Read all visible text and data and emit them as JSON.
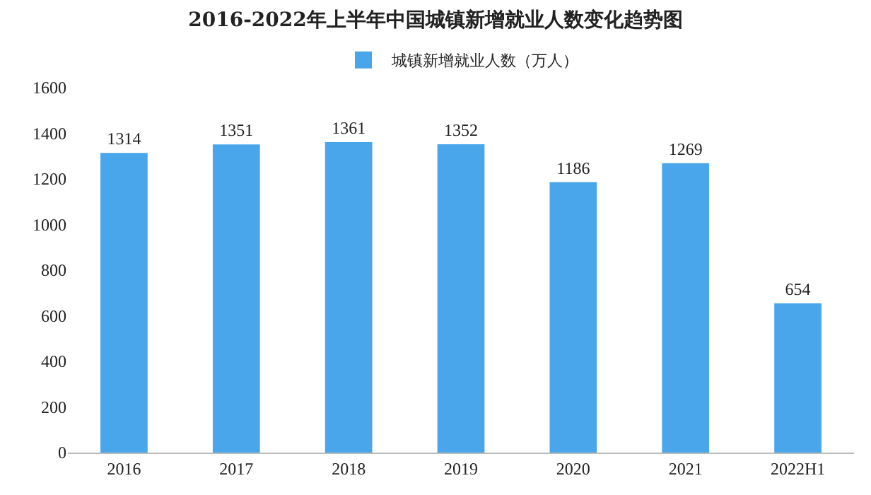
{
  "chart_data": {
    "type": "bar",
    "title": "2016-2022年上半年中国城镇新增就业人数变化趋势图",
    "categories": [
      "2016",
      "2017",
      "2018",
      "2019",
      "2020",
      "2021",
      "2022H1"
    ],
    "series": [
      {
        "name": "城镇新增就业人数（万人）",
        "color": "#4aa6ea",
        "values": [
          1314,
          1351,
          1361,
          1352,
          1186,
          1269,
          654
        ]
      }
    ],
    "ylim": [
      0,
      1600
    ],
    "yticks": [
      0,
      200,
      400,
      600,
      800,
      1000,
      1200,
      1400,
      1600
    ],
    "grid": false,
    "legend": "top",
    "data_labels": true
  }
}
